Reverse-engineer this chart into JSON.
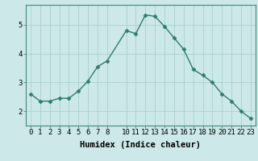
{
  "x": [
    0,
    1,
    2,
    3,
    4,
    5,
    6,
    7,
    8,
    10,
    11,
    12,
    13,
    14,
    15,
    16,
    17,
    18,
    19,
    20,
    21,
    22,
    23
  ],
  "y": [
    2.6,
    2.35,
    2.35,
    2.45,
    2.45,
    2.7,
    3.05,
    3.55,
    3.75,
    4.8,
    4.7,
    5.35,
    5.3,
    4.95,
    4.55,
    4.15,
    3.45,
    3.25,
    3.0,
    2.6,
    2.35,
    2.0,
    1.75
  ],
  "line_color": "#2e7d6e",
  "marker": "D",
  "marker_size": 2.5,
  "bg_color": "#cce8e8",
  "grid_color": "#aacfcf",
  "xlabel": "Humidex (Indice chaleur)",
  "xlabel_fontsize": 7.5,
  "tick_fontsize": 6.5,
  "xlim": [
    -0.5,
    23.5
  ],
  "ylim": [
    1.5,
    5.7
  ],
  "yticks": [
    2,
    3,
    4,
    5
  ],
  "xticks": [
    0,
    1,
    2,
    3,
    4,
    5,
    6,
    7,
    8,
    10,
    11,
    12,
    13,
    14,
    15,
    16,
    17,
    18,
    19,
    20,
    21,
    22,
    23
  ],
  "line_width": 1.0,
  "spine_color": "#3d8b7a"
}
